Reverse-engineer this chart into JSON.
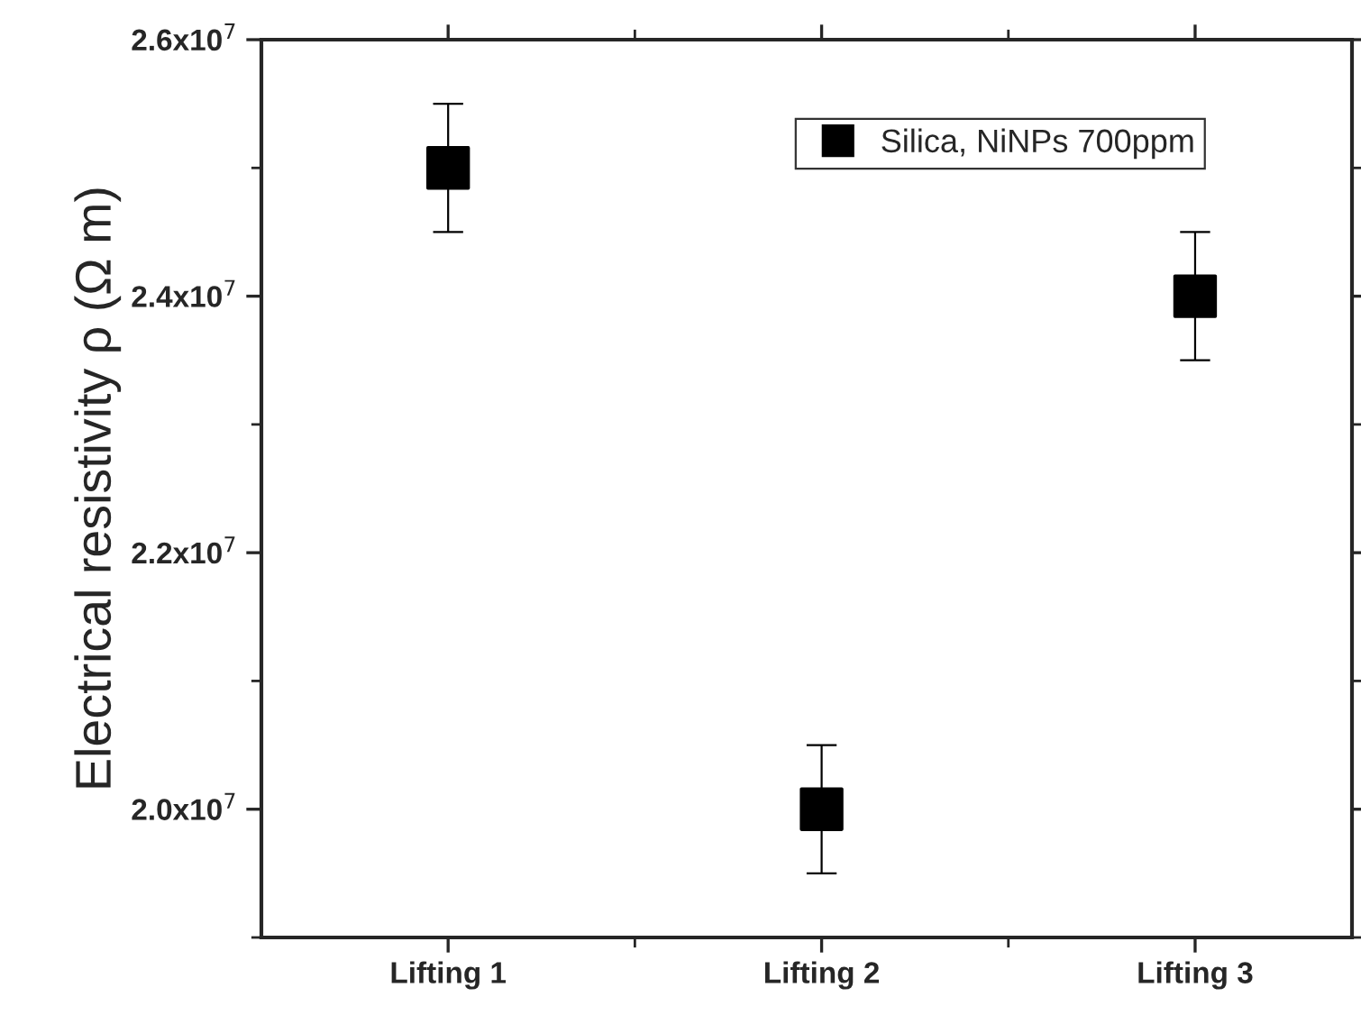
{
  "chart_data": {
    "type": "scatter",
    "ylabel": "Electrical resistivity ρ (Ω m)",
    "categories": [
      "Lifting 1",
      "Lifting 2",
      "Lifting 3"
    ],
    "series": [
      {
        "name": "Silica, NiNPs 700ppm",
        "color": "#000000",
        "values": [
          25000000,
          20000000,
          24000000
        ],
        "errors": [
          500000,
          500000,
          500000
        ]
      }
    ],
    "ylim": [
      19000000,
      26000000
    ],
    "yticks": [
      {
        "value": 20000000,
        "label": "2.0x10$^{7}$"
      },
      {
        "value": 22000000,
        "label": "2.2x10$^{7}$"
      },
      {
        "value": 24000000,
        "label": "2.4x10$^{7}$"
      },
      {
        "value": 26000000,
        "label": "2.6x10$^{7}$"
      }
    ],
    "marker": "square",
    "legend": "top right",
    "grid": false
  }
}
